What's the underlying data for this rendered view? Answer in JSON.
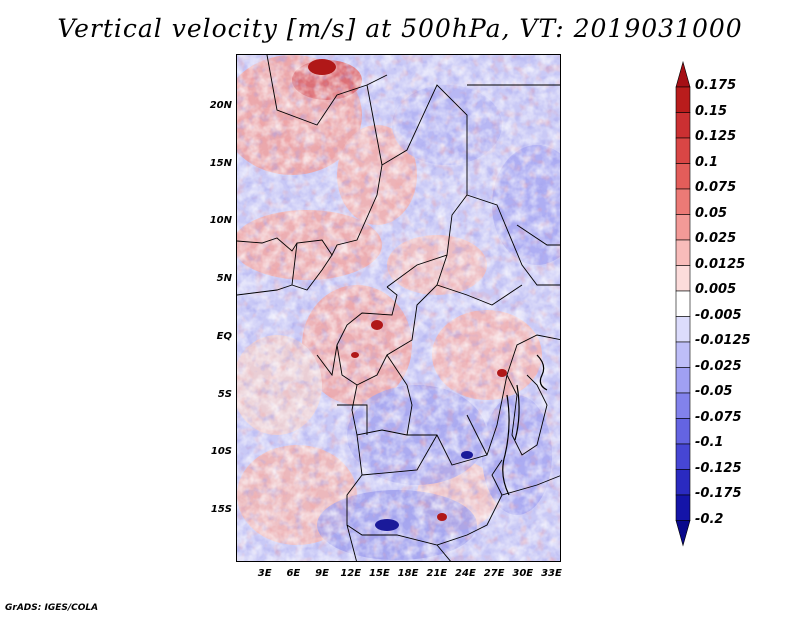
{
  "title": "Vertical velocity [m/s] at 500hPa, VT: 2019031000",
  "credit": "GrADS: IGES/COLA",
  "map": {
    "lat_labels": [
      "20N",
      "15N",
      "10N",
      "5N",
      "EQ",
      "5S",
      "10S",
      "15S"
    ],
    "lon_labels": [
      "3E",
      "6E",
      "9E",
      "12E",
      "15E",
      "18E",
      "21E",
      "24E",
      "27E",
      "30E",
      "33E"
    ],
    "lat_range": [
      -19.5,
      24.5
    ],
    "lon_range": [
      0,
      34
    ]
  },
  "colorbar": {
    "labels": [
      "0.175",
      "0.15",
      "0.125",
      "0.1",
      "0.075",
      "0.05",
      "0.025",
      "0.0125",
      "0.005",
      "-0.005",
      "-0.0125",
      "-0.025",
      "-0.05",
      "-0.075",
      "-0.1",
      "-0.125",
      "-0.175",
      "-0.2"
    ],
    "colors_top_to_bottom": [
      "#a50f15",
      "#b91c1c",
      "#cb3032",
      "#d94645",
      "#e35d5a",
      "#ec7a76",
      "#f39a97",
      "#f8bcba",
      "#fcdcdb",
      "#ffffff",
      "#dcdcfc",
      "#bebef8",
      "#a0a0f3",
      "#8282ec",
      "#6464e2",
      "#4646d4",
      "#2a2ac0",
      "#1414a8",
      "#0a0a8c"
    ]
  }
}
